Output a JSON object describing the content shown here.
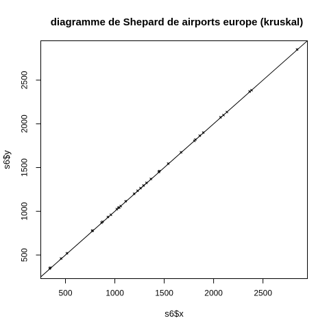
{
  "chart_data": {
    "type": "scatter",
    "title": "diagramme de Shepard de airports europe (kruskal)",
    "xlabel": "s6$x",
    "ylabel": "s6$y",
    "xlim": [
      250,
      2950
    ],
    "ylim": [
      230,
      2950
    ],
    "xticks": [
      500,
      1000,
      1500,
      2000,
      2500
    ],
    "xtick_labels": [
      "500",
      "1000",
      "1500",
      "2000",
      "2500"
    ],
    "yticks": [
      500,
      1000,
      1500,
      2000,
      2500
    ],
    "ytick_labels": [
      "500",
      "1000",
      "1500",
      "2000",
      "2500"
    ],
    "grid": false,
    "reference_line": {
      "intercept": 0,
      "slope": 1
    },
    "points": [
      {
        "x": 340,
        "y": 345
      },
      {
        "x": 345,
        "y": 355
      },
      {
        "x": 455,
        "y": 460
      },
      {
        "x": 515,
        "y": 520
      },
      {
        "x": 770,
        "y": 775
      },
      {
        "x": 775,
        "y": 780
      },
      {
        "x": 865,
        "y": 870
      },
      {
        "x": 875,
        "y": 880
      },
      {
        "x": 930,
        "y": 935
      },
      {
        "x": 960,
        "y": 960
      },
      {
        "x": 1020,
        "y": 1025
      },
      {
        "x": 1035,
        "y": 1040
      },
      {
        "x": 1045,
        "y": 1045
      },
      {
        "x": 1060,
        "y": 1060
      },
      {
        "x": 1110,
        "y": 1115
      },
      {
        "x": 1195,
        "y": 1200
      },
      {
        "x": 1230,
        "y": 1235
      },
      {
        "x": 1260,
        "y": 1265
      },
      {
        "x": 1290,
        "y": 1295
      },
      {
        "x": 1320,
        "y": 1325
      },
      {
        "x": 1365,
        "y": 1370
      },
      {
        "x": 1445,
        "y": 1450
      },
      {
        "x": 1450,
        "y": 1460
      },
      {
        "x": 1540,
        "y": 1545
      },
      {
        "x": 1670,
        "y": 1675
      },
      {
        "x": 1805,
        "y": 1805
      },
      {
        "x": 1815,
        "y": 1820
      },
      {
        "x": 1860,
        "y": 1865
      },
      {
        "x": 1895,
        "y": 1900
      },
      {
        "x": 2070,
        "y": 2075
      },
      {
        "x": 2100,
        "y": 2100
      },
      {
        "x": 2135,
        "y": 2135
      },
      {
        "x": 2365,
        "y": 2370
      },
      {
        "x": 2385,
        "y": 2385
      },
      {
        "x": 2845,
        "y": 2850
      }
    ]
  }
}
